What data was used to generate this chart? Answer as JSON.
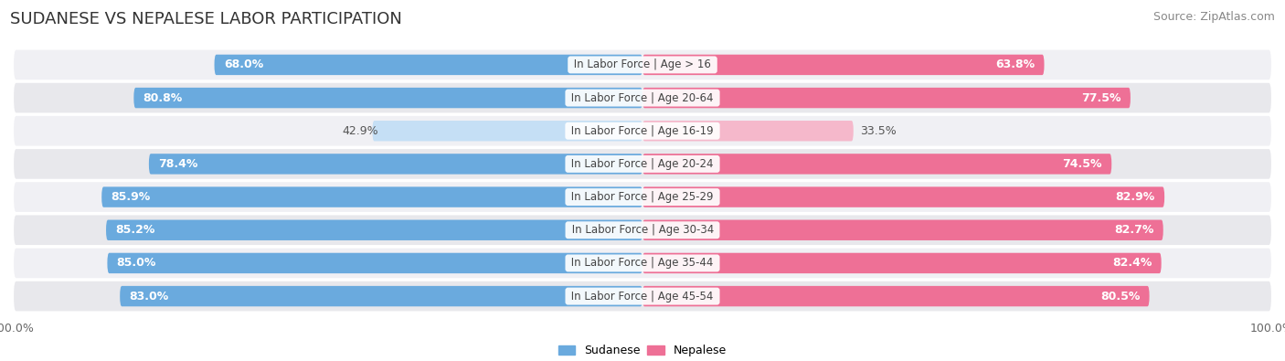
{
  "title": "SUDANESE VS NEPALESE LABOR PARTICIPATION",
  "source": "Source: ZipAtlas.com",
  "categories": [
    "In Labor Force | Age > 16",
    "In Labor Force | Age 20-64",
    "In Labor Force | Age 16-19",
    "In Labor Force | Age 20-24",
    "In Labor Force | Age 25-29",
    "In Labor Force | Age 30-34",
    "In Labor Force | Age 35-44",
    "In Labor Force | Age 45-54"
  ],
  "sudanese": [
    68.0,
    80.8,
    42.9,
    78.4,
    85.9,
    85.2,
    85.0,
    83.0
  ],
  "nepalese": [
    63.8,
    77.5,
    33.5,
    74.5,
    82.9,
    82.7,
    82.4,
    80.5
  ],
  "sudanese_color_full": "#6aaade",
  "sudanese_color_light": "#c5dff5",
  "nepalese_color_full": "#ee7096",
  "nepalese_color_light": "#f5b8cb",
  "row_bg_color": "#e8e8ec",
  "row_bg_light": "#f0f0f4",
  "center_label_color": "#444444",
  "value_label_color_white": "#ffffff",
  "value_label_color_dark": "#555555",
  "max_value": 100.0,
  "legend_sudanese": "Sudanese",
  "legend_nepalese": "Nepalese",
  "title_fontsize": 13,
  "source_fontsize": 9,
  "bar_label_fontsize": 9,
  "category_fontsize": 8.5,
  "axis_label_fontsize": 9
}
